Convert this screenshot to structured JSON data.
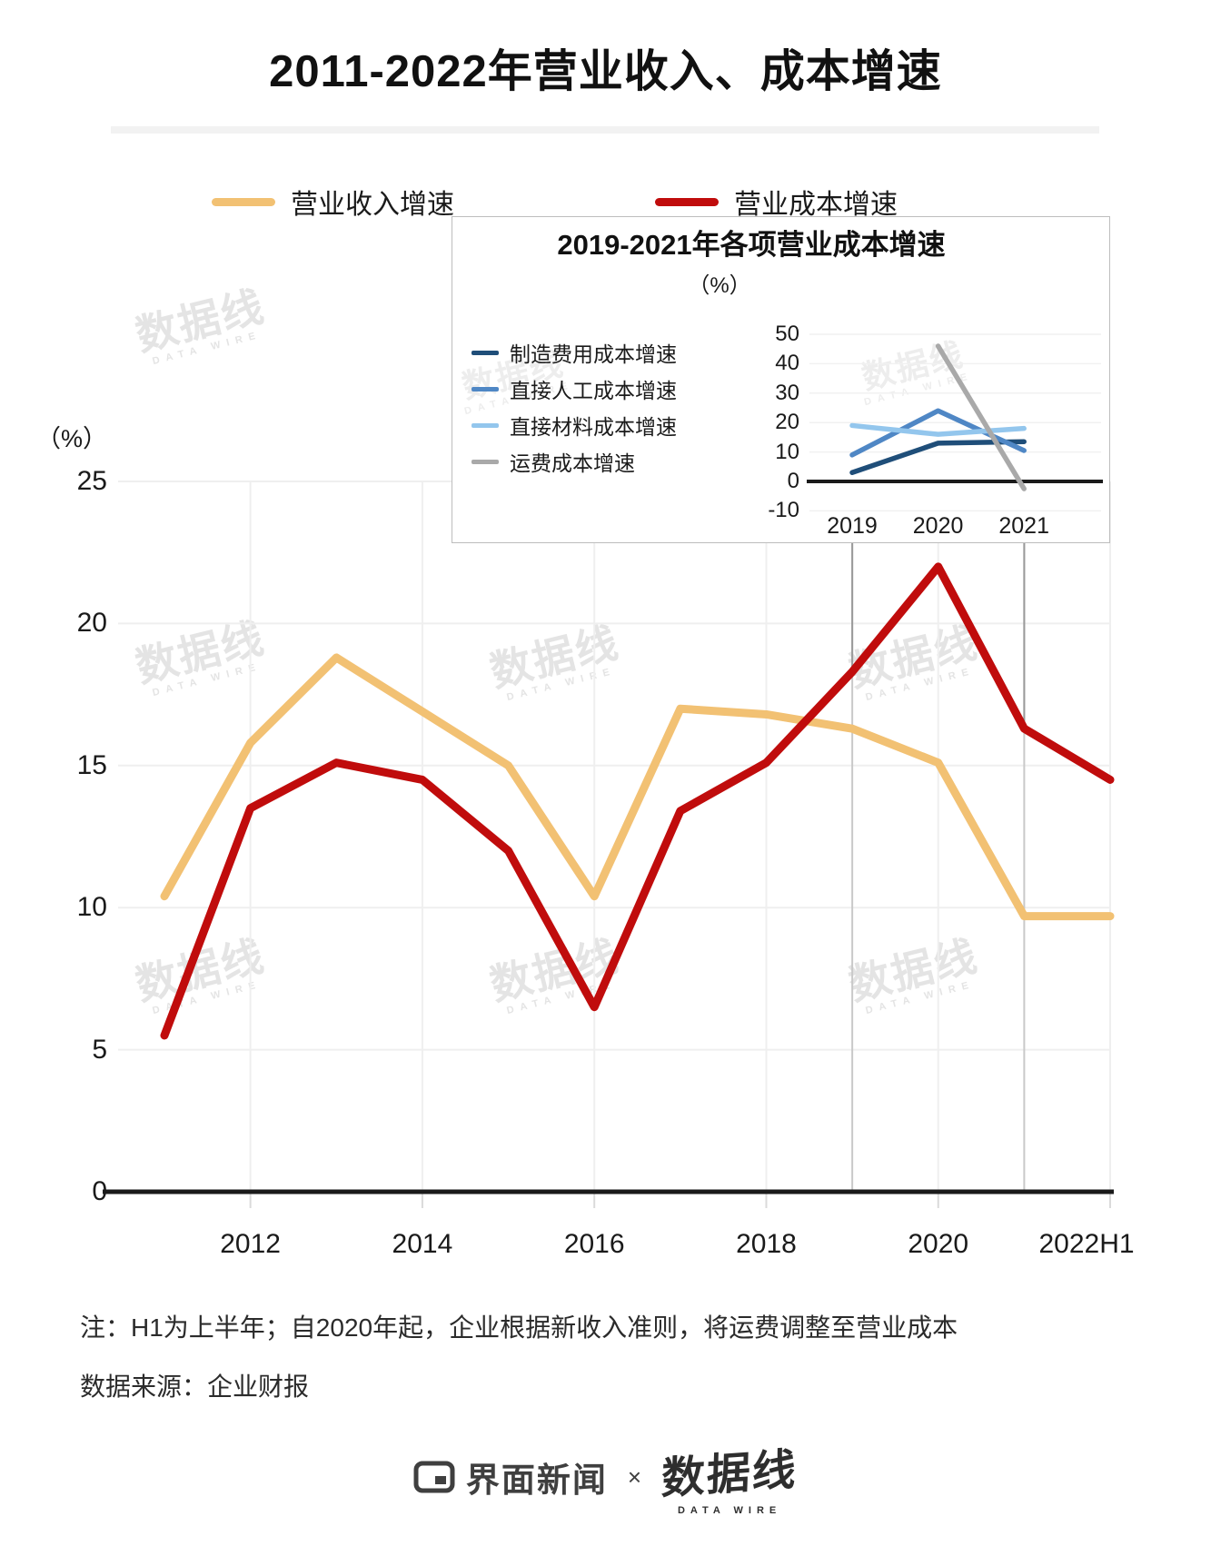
{
  "chart_data": [
    {
      "type": "line",
      "title": "2011-2022年营业收入、成本增速",
      "unit": "（%）",
      "categories": [
        "2011",
        "2012",
        "2013",
        "2014",
        "2015",
        "2016",
        "2017",
        "2018",
        "2019",
        "2020",
        "2021",
        "2022H1"
      ],
      "x_tick_labels": [
        "2012",
        "2014",
        "2016",
        "2018",
        "2020",
        "2022H1"
      ],
      "series": [
        {
          "name": "营业收入增速",
          "color": "#F2C173",
          "values": [
            10.4,
            15.8,
            18.8,
            16.9,
            15.0,
            10.4,
            17.0,
            16.8,
            16.3,
            15.1,
            9.7,
            9.7
          ]
        },
        {
          "name": "营业成本增速",
          "color": "#C00C0C",
          "values": [
            5.5,
            13.5,
            15.1,
            14.5,
            12.0,
            6.5,
            13.4,
            15.1,
            18.3,
            22.0,
            16.3,
            14.5
          ]
        }
      ],
      "ylim": [
        0,
        25
      ],
      "yticks": [
        0,
        5,
        10,
        15,
        20,
        25
      ],
      "grid": true,
      "legend_position": "top"
    },
    {
      "type": "line",
      "title": "2019-2021年各项营业成本增速",
      "unit": "（%）",
      "categories": [
        "2019",
        "2020",
        "2021"
      ],
      "series": [
        {
          "name": "制造费用成本增速",
          "color": "#1F4E79",
          "values": [
            3,
            13,
            13.5
          ]
        },
        {
          "name": "直接人工成本增速",
          "color": "#4F87C5",
          "values": [
            9,
            24,
            10.5
          ]
        },
        {
          "name": "直接材料成本增速",
          "color": "#93C6ED",
          "values": [
            19,
            16,
            18
          ]
        },
        {
          "name": "运费成本增速",
          "color": "#A9A9A9",
          "values": [
            null,
            46,
            -2.5
          ]
        }
      ],
      "ylim": [
        -10,
        50
      ],
      "yticks": [
        -10,
        0,
        10,
        20,
        30,
        40,
        50
      ],
      "grid": true,
      "legend_position": "left"
    }
  ],
  "notes": {
    "line1": "注：H1为上半年；自2020年起，企业根据新收入准则，将运费调整至营业成本",
    "line2": "数据来源：企业财报"
  },
  "footer": {
    "brand_left": "界面新闻",
    "separator": "×",
    "brand_right": "数据线",
    "brand_right_sub": "DATA WIRE"
  },
  "watermark": {
    "text": "数据线",
    "sub": "DATA WIRE"
  }
}
